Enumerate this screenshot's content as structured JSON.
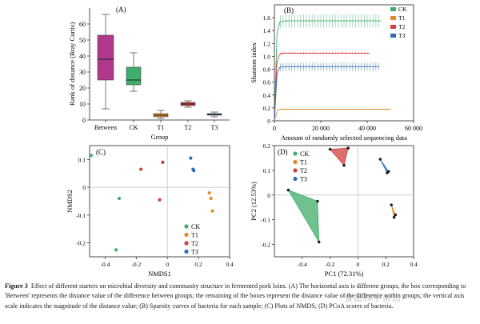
{
  "figure": {
    "caption_lead": "Figure 3",
    "caption_text": "Effect of different starters on microbial diversity and community structure in fermented pork loins. (A) The horizontal axis is different groups, the box corresponding to 'Between' represents the distance value of the difference between groups; the remaining of the boxes represent the distance value of the difference within groups; the vertical axis scale indicates the magnitude of the distance value; (B) Sparsity curves of bacteria for each sample; (C) Plots of NMDS; (D) PCoA scores of bacteria.",
    "watermark": "食品科学杂志"
  },
  "chart_data": [
    {
      "panel": "(A)",
      "type": "box",
      "xlabel": "Group",
      "ylabel": "Rank of distance (Bray Curtis)",
      "ylim": [
        0,
        70
      ],
      "yticks": [
        "0",
        "10",
        "20",
        "30",
        "40",
        "50",
        "60"
      ],
      "categories": [
        "Between",
        "CK",
        "T1",
        "T2",
        "T3"
      ],
      "colors": [
        "#b0398e",
        "#3fae6a",
        "#e4892a",
        "#d23f3d",
        "#2f6db5"
      ],
      "boxes": [
        {
          "min": 7,
          "q1": 25,
          "median": 38,
          "q3": 53,
          "max": 66
        },
        {
          "min": 18,
          "q1": 22,
          "median": 25,
          "q3": 33,
          "max": 42
        },
        {
          "min": 1,
          "q1": 2,
          "median": 3,
          "q3": 4,
          "max": 6
        },
        {
          "min": 8,
          "q1": 9,
          "median": 10,
          "q3": 11,
          "max": 12
        },
        {
          "min": 2,
          "q1": 3,
          "median": 3.5,
          "q3": 4,
          "max": 5
        }
      ]
    },
    {
      "panel": "(B)",
      "type": "line",
      "xlabel": "Amount of randomly selected sequencing data",
      "ylabel": "Shannon index",
      "xlim": [
        0,
        60000
      ],
      "ylim": [
        0,
        1.8
      ],
      "xticks": [
        "0",
        "20 000",
        "40 000",
        "60 000"
      ],
      "yticks": [
        "0",
        "0.2",
        "0.4",
        "0.6",
        "0.8",
        "1.0",
        "1.2",
        "1.4",
        "1.6"
      ],
      "legend_position": "top-right",
      "series": [
        {
          "name": "CK",
          "color": "#3fae6a",
          "plateau": 1.55,
          "error": 0.1,
          "xmax": 46000
        },
        {
          "name": "T1",
          "color": "#e4892a",
          "plateau": 0.18,
          "error": 0.01,
          "xmax": 50000
        },
        {
          "name": "T2",
          "color": "#d23f3d",
          "plateau": 1.05,
          "error": 0.02,
          "xmax": 41000
        },
        {
          "name": "T3",
          "color": "#2f6db5",
          "plateau": 0.84,
          "error": 0.06,
          "xmax": 45000
        }
      ]
    },
    {
      "panel": "(C)",
      "type": "scatter",
      "xlabel": "NMDS1",
      "ylabel": "NMDS2",
      "xlim": [
        -0.5,
        0.4
      ],
      "ylim": [
        -0.25,
        0.15
      ],
      "xticks": [
        "-0.4",
        "-0.2",
        "0",
        "0.2",
        "0.4"
      ],
      "yticks": [
        "-0.2",
        "-0.1",
        "0",
        "0.1"
      ],
      "legend_position": "bottom-right",
      "series": [
        {
          "name": "CK",
          "color": "#3fae6a",
          "points": [
            [
              -0.49,
              0.115
            ],
            [
              -0.31,
              -0.04
            ],
            [
              -0.33,
              -0.225
            ]
          ]
        },
        {
          "name": "T1",
          "color": "#e4892a",
          "points": [
            [
              0.28,
              -0.04
            ],
            [
              0.29,
              -0.085
            ],
            [
              0.27,
              -0.02
            ]
          ]
        },
        {
          "name": "T2",
          "color": "#d23f3d",
          "points": [
            [
              -0.03,
              0.09
            ],
            [
              -0.17,
              0.065
            ],
            [
              -0.05,
              -0.045
            ]
          ]
        },
        {
          "name": "T3",
          "color": "#2f6db5",
          "points": [
            [
              0.15,
              0.105
            ],
            [
              0.17,
              0.06
            ],
            [
              0.165,
              0.065
            ]
          ]
        }
      ]
    },
    {
      "panel": "(D)",
      "type": "scatter",
      "xlabel": "PC1 (72.31%)",
      "ylabel": "PC2 (12.53%)",
      "xlim": [
        -0.6,
        0.4
      ],
      "ylim": [
        -0.25,
        0.2
      ],
      "xticks": [
        "-0.4",
        "-0.2",
        "0",
        "0.2",
        "0.4"
      ],
      "yticks": [
        "-0.2",
        "-0.1",
        "0",
        "0.1",
        "0.2"
      ],
      "legend_position": "top-left",
      "series": [
        {
          "name": "CK",
          "color": "#3fae6a",
          "points": [
            [
              -0.5,
              0.02
            ],
            [
              -0.29,
              -0.025
            ],
            [
              -0.28,
              -0.19
            ]
          ]
        },
        {
          "name": "T1",
          "color": "#e4892a",
          "points": [
            [
              0.24,
              -0.04
            ],
            [
              0.26,
              -0.09
            ],
            [
              0.27,
              -0.08
            ]
          ]
        },
        {
          "name": "T2",
          "color": "#d23f3d",
          "points": [
            [
              -0.2,
              0.185
            ],
            [
              -0.07,
              0.19
            ],
            [
              -0.1,
              0.12
            ]
          ]
        },
        {
          "name": "T3",
          "color": "#2f6db5",
          "points": [
            [
              0.16,
              0.145
            ],
            [
              0.21,
              0.09
            ],
            [
              0.22,
              0.095
            ]
          ]
        }
      ]
    }
  ]
}
